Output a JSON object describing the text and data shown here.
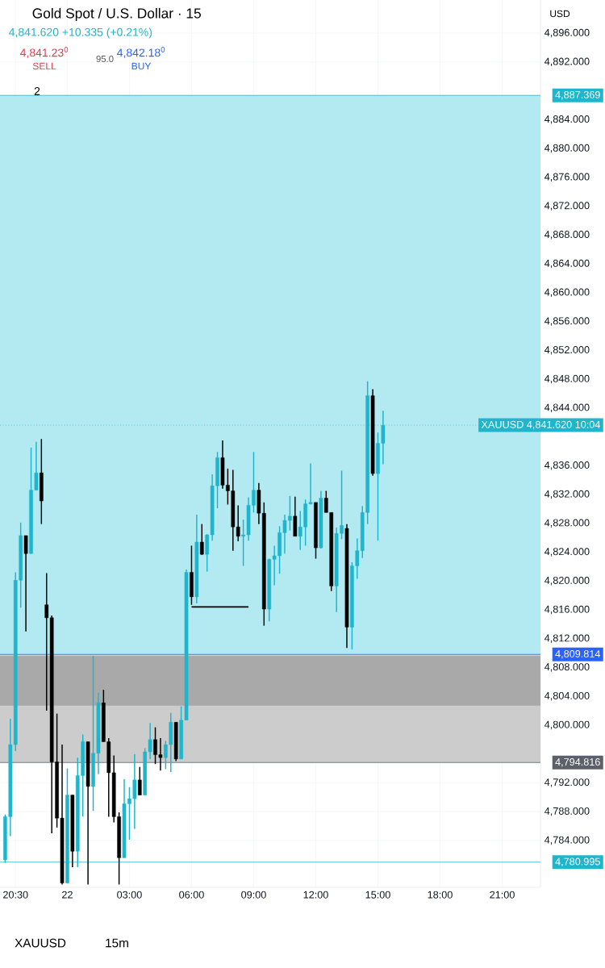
{
  "chart_data": {
    "type": "candlestick",
    "title": "Gold Spot / U.S. Dollar · 15",
    "subtitle": "4,841.620 +10.335 (+0.21%)",
    "annotations": [
      "4,841.23$^{0}$",
      "SELL",
      "95.0",
      "4,842.18$^{0}$",
      "BUY",
      "2",
      "USD",
      "XAUUSD",
      "15m"
    ],
    "categories": [
      null,
      null,
      "20:30",
      null,
      null,
      null,
      null,
      null,
      null,
      null,
      null,
      null,
      "22",
      null,
      null,
      null,
      null,
      null,
      null,
      null,
      null,
      null,
      null,
      null,
      "03:00",
      null,
      null,
      null,
      null,
      null,
      null,
      null,
      null,
      null,
      null,
      null,
      "06:00",
      null,
      null,
      null,
      null,
      null,
      null,
      null,
      null,
      null,
      null,
      null,
      "09:00",
      null,
      null,
      null,
      null,
      null,
      null,
      null,
      null,
      null,
      null,
      null,
      "12:00",
      null,
      null,
      null,
      null,
      null,
      null,
      null,
      null,
      null,
      null,
      null,
      "15:00",
      null,
      null,
      null,
      null,
      null,
      null,
      null,
      null,
      null,
      null,
      null,
      "18:00",
      null,
      null,
      null,
      null,
      null,
      null,
      null,
      null,
      null,
      null,
      null,
      "21:00",
      null,
      null,
      null,
      null,
      null,
      null,
      null
    ],
    "ohlc": [
      [
        4781.3,
        4787.6,
        4780.9,
        4787.3
      ],
      [
        4787.3,
        4800.9,
        4784.6,
        4797.3
      ],
      [
        4797.3,
        4821.2,
        4796.4,
        4820.1
      ],
      [
        4820.1,
        4828.1,
        4816.3,
        4826.3
      ],
      [
        4826.3,
        4826.3,
        4813.0,
        4823.8
      ],
      [
        4823.8,
        4838.5,
        4823.8,
        4832.6
      ],
      [
        4832.6,
        4839.3,
        4832.6,
        4835.0
      ],
      [
        4835.0,
        4839.7,
        4827.9,
        4831.1
      ],
      [
        4816.7,
        4821.1,
        4802.0,
        4814.9
      ],
      [
        4814.9,
        4815.2,
        4785.0,
        4794.9
      ],
      [
        4794.9,
        4801.6,
        4785.8,
        4787.1
      ],
      [
        4787.1,
        4797.3,
        4777.9,
        4778.1
      ],
      [
        4778.1,
        4794.0,
        4778.1,
        4790.3
      ],
      [
        4790.3,
        4790.3,
        4780.3,
        4782.5
      ],
      [
        4782.5,
        4795.5,
        4780.3,
        4793.0
      ],
      [
        4793.0,
        4798.7,
        4787.3,
        4797.7
      ],
      [
        4797.7,
        4797.7,
        4777.9,
        4791.5
      ],
      [
        4791.5,
        4809.6,
        4788.1,
        4796.1
      ],
      [
        4796.1,
        4804.5,
        4793.2,
        4803.1
      ],
      [
        4803.1,
        4804.9,
        4797.7,
        4797.7
      ],
      [
        4797.7,
        4798.2,
        4787.3,
        4793.4
      ],
      [
        4793.4,
        4795.8,
        4786.5,
        4787.3
      ],
      [
        4787.3,
        4787.9,
        4777.9,
        4781.6
      ],
      [
        4781.6,
        4792.5,
        4781.6,
        4789.1
      ],
      [
        4789.1,
        4791.4,
        4784.1,
        4789.8
      ],
      [
        4789.8,
        4796.0,
        4785.6,
        4792.4
      ],
      [
        4792.4,
        4794.2,
        4790.3,
        4790.3
      ],
      [
        4790.3,
        4796.8,
        4790.3,
        4796.3
      ],
      [
        4796.3,
        4800.3,
        4795.3,
        4798.0
      ],
      [
        4798.0,
        4799.7,
        4794.6,
        4795.9
      ],
      [
        4795.9,
        4798.2,
        4793.7,
        4795.5
      ],
      [
        4795.5,
        4797.8,
        4793.9,
        4797.3
      ],
      [
        4797.3,
        4801.7,
        4793.5,
        4800.4
      ],
      [
        4800.4,
        4800.4,
        4795.0,
        4795.3
      ],
      [
        4795.3,
        4802.6,
        4795.3,
        4800.7
      ],
      [
        4800.7,
        4821.6,
        4800.7,
        4821.2
      ],
      [
        4821.2,
        4824.9,
        4816.7,
        4817.8
      ],
      [
        4817.8,
        4829.2,
        4816.9,
        4825.4
      ],
      [
        4825.4,
        4827.9,
        4823.6,
        4823.7
      ],
      [
        4823.7,
        4826.5,
        4821.3,
        4826.4
      ],
      [
        4826.4,
        4834.8,
        4825.6,
        4833.2
      ],
      [
        4833.2,
        4837.9,
        4830.1,
        4837.1
      ],
      [
        4837.1,
        4839.5,
        4832.8,
        4833.3
      ],
      [
        4833.3,
        4835.6,
        4830.6,
        4832.5
      ],
      [
        4832.5,
        4835.4,
        4824.2,
        4827.5
      ],
      [
        4827.5,
        4830.5,
        4825.5,
        4826.2
      ],
      [
        4826.2,
        4828.5,
        4822.1,
        4826.4
      ],
      [
        4826.4,
        4831.6,
        4825.6,
        4830.5
      ],
      [
        4830.5,
        4837.9,
        4829.5,
        4832.6
      ],
      [
        4832.6,
        4833.6,
        4827.9,
        4829.4
      ],
      [
        4829.4,
        4830.9,
        4813.8,
        4816.1
      ],
      [
        4816.1,
        4823.1,
        4814.4,
        4823.0
      ],
      [
        4823.0,
        4824.9,
        4819.4,
        4823.5
      ],
      [
        4823.5,
        4827.6,
        4821.0,
        4826.7
      ],
      [
        4826.7,
        4829.2,
        4823.8,
        4828.4
      ],
      [
        4828.4,
        4831.8,
        4827.0,
        4829.0
      ],
      [
        4829.0,
        4831.7,
        4826.2,
        4826.2
      ],
      [
        4826.2,
        4829.7,
        4824.3,
        4827.5
      ],
      [
        4827.5,
        4831.3,
        4824.9,
        4830.7
      ],
      [
        4830.7,
        4836.3,
        4830.6,
        4830.9
      ],
      [
        4830.9,
        4830.9,
        4823.1,
        4824.6
      ],
      [
        4824.6,
        4832.5,
        4824.5,
        4831.5
      ],
      [
        4831.5,
        4832.5,
        4829.5,
        4829.5
      ],
      [
        4829.5,
        4829.5,
        4818.6,
        4819.3
      ],
      [
        4819.3,
        4827.4,
        4815.7,
        4826.6
      ],
      [
        4826.6,
        4835.3,
        4825.8,
        4827.7
      ],
      [
        4827.3,
        4827.9,
        4810.7,
        4813.6
      ],
      [
        4813.6,
        4822.6,
        4810.5,
        4822.1
      ],
      [
        4822.1,
        4825.9,
        4820.3,
        4824.2
      ],
      [
        4824.2,
        4830.4,
        4823.2,
        4829.5
      ],
      [
        4829.5,
        4847.7,
        4827.9,
        4845.7
      ],
      [
        4845.7,
        4846.6,
        4834.6,
        4834.9
      ],
      [
        4834.9,
        4840.6,
        4825.6,
        4839.1
      ],
      [
        4839.1,
        4843.6,
        4836.2,
        4841.6
      ],
      null,
      null,
      null,
      null,
      null,
      null,
      null,
      null,
      null,
      null,
      null,
      null,
      null,
      null,
      null,
      null,
      null,
      null,
      null,
      null,
      null,
      null,
      null,
      null,
      null,
      null,
      null,
      null,
      null,
      null
    ],
    "colors": [
      "#1fb5cc",
      "#1fb5cc",
      "#1fb5cc",
      "#1fb5cc",
      "#000000",
      "#1fb5cc",
      "#1fb5cc",
      "#000000",
      "#000000",
      "#000000",
      "#000000",
      "#000000",
      "#1fb5cc",
      "#000000",
      "#1fb5cc",
      "#1fb5cc",
      "#000000",
      "#1fb5cc",
      "#1fb5cc",
      "#000000",
      "#000000",
      "#000000",
      "#000000",
      "#1fb5cc",
      "#1fb5cc",
      "#1fb5cc",
      "#000000",
      "#1fb5cc",
      "#1fb5cc",
      "#000000",
      "#000000",
      "#1fb5cc",
      "#1fb5cc",
      "#000000",
      "#1fb5cc",
      "#1fb5cc",
      "#000000",
      "#1fb5cc",
      "#000000",
      "#1fb5cc",
      "#1fb5cc",
      "#1fb5cc",
      "#000000",
      "#000000",
      "#000000",
      "#000000",
      "#1fb5cc",
      "#1fb5cc",
      "#1fb5cc",
      "#000000",
      "#000000",
      "#1fb5cc",
      "#1fb5cc",
      "#1fb5cc",
      "#1fb5cc",
      "#1fb5cc",
      "#000000",
      "#1fb5cc",
      "#1fb5cc",
      "#1fb5cc",
      "#000000",
      "#1fb5cc",
      "#000000",
      "#000000",
      "#1fb5cc",
      "#1fb5cc",
      "#000000",
      "#1fb5cc",
      "#1fb5cc",
      "#1fb5cc",
      "#1fb5cc",
      "#000000",
      "#1fb5cc",
      "#1fb5cc",
      null,
      null,
      null,
      null,
      null,
      null,
      null,
      null,
      null,
      null,
      null,
      null,
      null,
      null,
      null,
      null,
      null,
      null,
      null,
      null,
      null,
      null,
      null,
      null,
      null,
      null,
      null,
      null,
      null,
      null
    ],
    "series": [
      {
        "type": "line",
        "color": "#000000",
        "values": [
          null,
          null,
          null,
          null,
          null,
          null,
          null,
          null,
          null,
          null,
          null,
          null,
          null,
          null,
          null,
          null,
          null,
          null,
          null,
          null,
          null,
          null,
          null,
          null,
          null,
          null,
          null,
          null,
          null,
          null,
          null,
          null,
          null,
          null,
          null,
          null,
          4816.4,
          4816.4,
          4816.4,
          4816.4,
          4816.4,
          4816.4,
          4816.4,
          4816.4,
          4816.4,
          4816.4,
          4816.4,
          4816.4,
          null,
          null,
          null,
          null,
          null,
          null,
          null,
          null,
          null,
          null,
          null,
          null,
          null,
          null,
          null,
          null,
          null,
          null,
          null,
          null,
          null,
          null,
          null,
          null,
          null,
          null,
          null,
          null,
          null,
          null,
          null,
          null,
          null,
          null,
          null,
          null,
          null,
          null,
          null,
          null,
          null,
          null,
          null,
          null,
          null,
          null,
          null,
          null,
          null,
          null,
          null,
          null,
          null,
          null,
          null,
          null
        ]
      }
    ],
    "ylim": [
      4777.5,
      4900.6
    ],
    "yticks": [
      {
        "value": 4896,
        "label": "4,896.000"
      },
      {
        "value": 4892,
        "label": "4,892.000"
      },
      {
        "value": 4884,
        "label": "4,884.000"
      },
      {
        "value": 4880,
        "label": "4,880.000"
      },
      {
        "value": 4876,
        "label": "4,876.000"
      },
      {
        "value": 4872,
        "label": "4,872.000"
      },
      {
        "value": 4868,
        "label": "4,868.000"
      },
      {
        "value": 4864,
        "label": "4,864.000"
      },
      {
        "value": 4860,
        "label": "4,860.000"
      },
      {
        "value": 4856,
        "label": "4,856.000"
      },
      {
        "value": 4852,
        "label": "4,852.000"
      },
      {
        "value": 4848,
        "label": "4,848.000"
      },
      {
        "value": 4844,
        "label": "4,844.000"
      },
      {
        "value": 4836,
        "label": "4,836.000"
      },
      {
        "value": 4832,
        "label": "4,832.000"
      },
      {
        "value": 4828,
        "label": "4,828.000"
      },
      {
        "value": 4824,
        "label": "4,824.000"
      },
      {
        "value": 4820,
        "label": "4,820.000"
      },
      {
        "value": 4816,
        "label": "4,816.000"
      },
      {
        "value": 4812,
        "label": "4,812.000"
      },
      {
        "value": 4808,
        "label": "4,808.000"
      },
      {
        "value": 4804,
        "label": "4,804.000"
      },
      {
        "value": 4800,
        "label": "4,800.000"
      },
      {
        "value": 4792,
        "label": "4,792.000"
      },
      {
        "value": 4788,
        "label": "4,788.000"
      },
      {
        "value": 4784,
        "label": "4,784.000"
      }
    ],
    "grid": true,
    "bands": [
      {
        "axis": "y",
        "from": 4809.814,
        "to": 4887.369,
        "color": "#b3e9f1"
      },
      {
        "axis": "y",
        "from": 4794.816,
        "to": 4809.814,
        "color": "#cccccc"
      },
      {
        "axis": "y",
        "from": 4802.7,
        "to": 4809.6,
        "color": "#a9a9a9"
      }
    ],
    "ref_lines": [
      {
        "axis": "y",
        "value": 4887.369,
        "label": "4,887.369",
        "color": "#1fb5cc"
      },
      {
        "axis": "y",
        "value": 4809.814,
        "label": "4,809.814",
        "color": "#2962ff"
      },
      {
        "axis": "y",
        "value": 4794.816,
        "label": "4,794.816",
        "color": "#5d606b"
      },
      {
        "axis": "y",
        "value": 4780.995,
        "label": "4,780.995",
        "color": "#1fb5cc"
      },
      {
        "axis": "y",
        "value": 4841.62,
        "label": "XAUUSD 4,841.620 10:04",
        "color": "#1fb5cc",
        "line_style": "dotted"
      }
    ]
  }
}
